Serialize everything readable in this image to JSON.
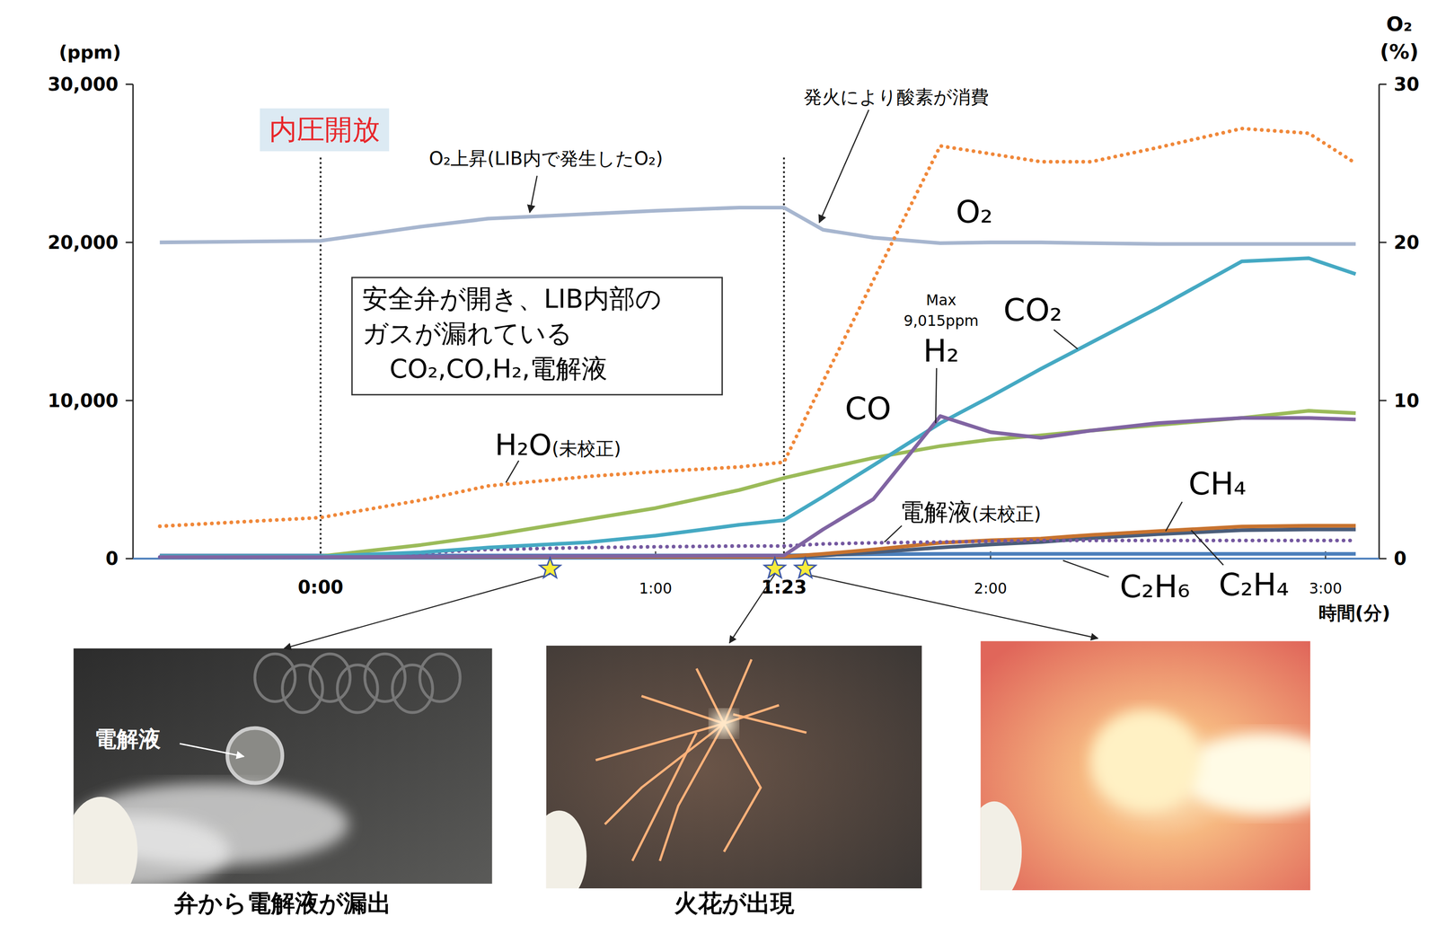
{
  "chart_data": {
    "type": "line",
    "x_label": "時間(分)",
    "y_label": "(ppm)",
    "y2_label": [
      "O₂",
      "(%)"
    ],
    "xlim": [
      -0.56,
      3.16
    ],
    "xticks": [
      {
        "value": 0,
        "label": "0:00"
      },
      {
        "value": 1,
        "label": "1:00"
      },
      {
        "value": 1.3833,
        "label": "1:23"
      },
      {
        "value": 2,
        "label": "2:00"
      },
      {
        "value": 3,
        "label": "3:00"
      }
    ],
    "ylim": [
      0,
      30000
    ],
    "yticks": [
      0,
      {
        "value": 10000,
        "label": "10,000"
      },
      {
        "value": 20000,
        "label": "20,000"
      },
      {
        "value": 30000,
        "label": "30,000"
      }
    ],
    "y2lim": [
      0,
      30
    ],
    "y2ticks": [
      0,
      10,
      20,
      30
    ],
    "grid": false,
    "vlines": [
      0,
      1.3833
    ],
    "x": [
      -0.48,
      0,
      0.3,
      0.5,
      0.8,
      1.0,
      1.25,
      1.3833,
      1.5,
      1.65,
      1.85,
      2.0,
      2.15,
      2.3,
      2.5,
      2.75,
      2.95,
      3.09
    ],
    "series": [
      {
        "name": "O₂",
        "color": "#a7b6cf",
        "line_style": "solid",
        "axis": "y2",
        "values": [
          20,
          20.1,
          21.0,
          21.5,
          21.8,
          22.0,
          22.2,
          22.2,
          20.8,
          20.3,
          19.95,
          20.0,
          20.0,
          19.95,
          19.9,
          19.9,
          19.9,
          19.9
        ]
      },
      {
        "name": "H₂O(未校正)",
        "color": "#f0883a",
        "line_style": "dotted",
        "values": [
          2050,
          2600,
          3700,
          4600,
          5200,
          5500,
          5800,
          6100,
          11200,
          17600,
          26100,
          25600,
          25100,
          25100,
          26000,
          27200,
          26900,
          25000
        ]
      },
      {
        "name": "CO",
        "color": "#9bbb59",
        "line_style": "solid",
        "values": [
          150,
          150,
          870,
          1450,
          2500,
          3200,
          4340,
          5100,
          5670,
          6370,
          7120,
          7530,
          7800,
          8100,
          8450,
          8900,
          9350,
          9200
        ]
      },
      {
        "name": "CO₂",
        "color": "#45a9c3",
        "line_style": "solid",
        "values": [
          150,
          150,
          400,
          700,
          1040,
          1450,
          2140,
          2430,
          3920,
          5900,
          8570,
          10250,
          12000,
          13660,
          15860,
          18800,
          19000,
          18000
        ]
      },
      {
        "name": "H₂",
        "color": "#8064a2",
        "line_style": "solid",
        "values": [
          100,
          100,
          120,
          140,
          160,
          170,
          190,
          200,
          1850,
          3760,
          9015,
          8000,
          7640,
          8100,
          8570,
          8900,
          8900,
          8800
        ]
      },
      {
        "name": "電解液(未校正)",
        "color": "#7458a0",
        "line_style": "dotted",
        "values": [
          100,
          100,
          350,
          580,
          700,
          750,
          800,
          800,
          930,
          1000,
          1050,
          1100,
          1150,
          1150,
          1150,
          1150,
          1150,
          1150
        ]
      },
      {
        "name": "CH₄",
        "color": "#c8732f",
        "line_style": "solid",
        "values": [
          100,
          100,
          100,
          100,
          100,
          100,
          100,
          120,
          300,
          580,
          1000,
          1160,
          1270,
          1500,
          1740,
          2030,
          2080,
          2080
        ]
      },
      {
        "name": "C₂H₄",
        "color": "#4a5d7a",
        "line_style": "solid",
        "values": [
          100,
          100,
          100,
          100,
          100,
          100,
          100,
          100,
          200,
          400,
          700,
          900,
          1050,
          1300,
          1550,
          1800,
          1850,
          1850
        ]
      },
      {
        "name": "C₂H₆",
        "color": "#4a7ebb",
        "line_style": "solid",
        "values": [
          200,
          200,
          200,
          200,
          200,
          200,
          200,
          200,
          250,
          280,
          300,
          300,
          300,
          300,
          300,
          300,
          300,
          300
        ]
      }
    ],
    "annotations": [
      {
        "text": "内圧開放"
      },
      {
        "text": "O₂上昇(LIB内で発生したO₂)"
      },
      {
        "text": "発火により酸素が消費"
      },
      {
        "text": [
          "安全弁が開き、LIB内部の",
          "ガスが漏れている",
          "CO₂,CO,H₂,電解液"
        ]
      },
      {
        "text": [
          "Max",
          "9,015ppm"
        ]
      }
    ],
    "events": [
      {
        "x": 0.685,
        "label": "弁から電解液が漏出",
        "photo_label": "電解液"
      },
      {
        "x": 1.356,
        "label": "火花が出現"
      },
      {
        "x": 1.447
      }
    ]
  }
}
